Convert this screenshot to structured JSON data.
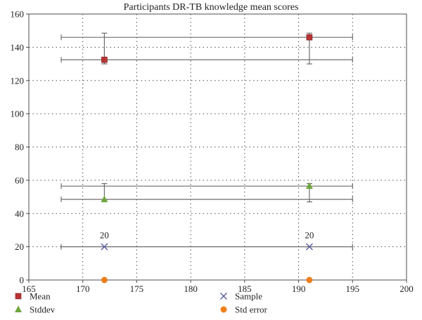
{
  "chart_data": {
    "type": "scatter",
    "title": "Participants DR-TB knowledge mean scores",
    "xlim": [
      165,
      200
    ],
    "ylim": [
      0,
      160
    ],
    "xticks": [
      165,
      170,
      175,
      180,
      185,
      190,
      195,
      200
    ],
    "yticks": [
      0,
      20,
      40,
      60,
      80,
      100,
      120,
      140,
      160
    ],
    "grid": "dotted vertical and horizontal",
    "legend_position": "bottom",
    "series": [
      {
        "name": "Mean",
        "marker": "square",
        "color": "#b83434",
        "points": [
          {
            "x": 172,
            "y": 132.5,
            "yerr_low": 130,
            "yerr_high": 148.5
          },
          {
            "x": 191,
            "y": 146,
            "yerr_low": 130,
            "yerr_high": 148.5
          }
        ],
        "hbars": [
          {
            "y": 146,
            "x_low": 168,
            "x_high": 195
          },
          {
            "y": 132.5,
            "x_low": 168,
            "x_high": 195
          }
        ]
      },
      {
        "name": "Stddev",
        "marker": "triangle",
        "color": "#6fa63c",
        "points": [
          {
            "x": 172,
            "y": 48.5,
            "yerr_low": 48.5,
            "yerr_high": 58
          },
          {
            "x": 191,
            "y": 56.5,
            "yerr_low": 47,
            "yerr_high": 58
          }
        ],
        "hbars": [
          {
            "y": 56.5,
            "x_low": 168,
            "x_high": 195
          },
          {
            "y": 48.5,
            "x_low": 168,
            "x_high": 195
          }
        ]
      },
      {
        "name": "Sample",
        "marker": "x",
        "color": "#5b5e9e",
        "points": [
          {
            "x": 172,
            "y": 20,
            "label": "20"
          },
          {
            "x": 191,
            "y": 20,
            "label": "20"
          }
        ],
        "hbars": [
          {
            "y": 20,
            "x_low": 168,
            "x_high": 195
          }
        ]
      },
      {
        "name": "Std error",
        "marker": "circle",
        "color": "#f07f1a",
        "points": [
          {
            "x": 172,
            "y": 0
          },
          {
            "x": 191,
            "y": 0
          }
        ],
        "hbars": []
      }
    ]
  }
}
